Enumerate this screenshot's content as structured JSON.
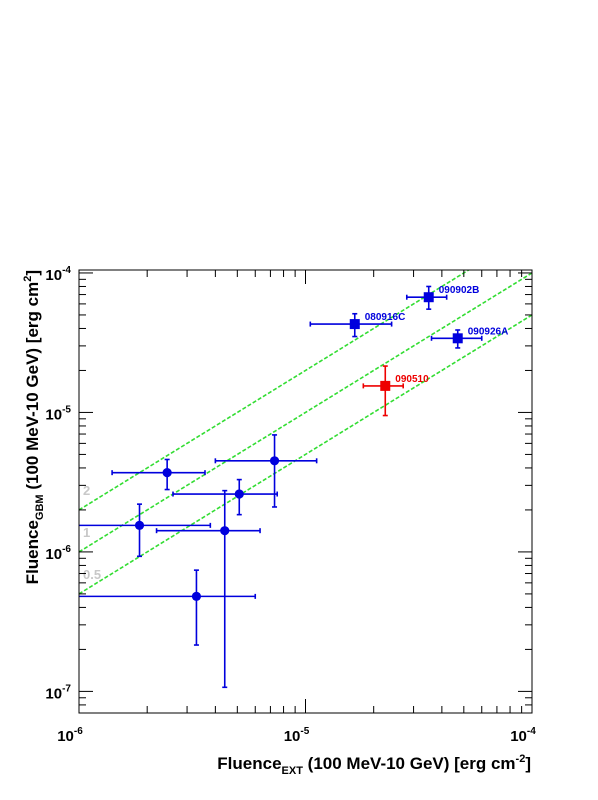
{
  "chart_data": {
    "type": "scatter",
    "title": "",
    "xlabel": {
      "main": "Fluence",
      "sub": "EXT",
      "rest": " (100 MeV-10 GeV) [erg cm",
      "sup": "-2",
      "close": "]"
    },
    "ylabel": {
      "main": "Fluence",
      "sub": "GBM",
      "rest": " (100 MeV-10 GeV) [erg cm",
      "sup": "2",
      "close": "]"
    },
    "xscale": "log",
    "yscale": "log",
    "xlim": [
      1e-06,
      0.0001
    ],
    "ylim": [
      7e-08,
      0.000105
    ],
    "x_ticks": [
      {
        "value": 1e-06,
        "base": "10",
        "exp": "-6"
      },
      {
        "value": 1e-05,
        "base": "10",
        "exp": "-5"
      },
      {
        "value": 0.0001,
        "base": "10",
        "exp": "-4"
      }
    ],
    "y_ticks": [
      {
        "value": 1e-07,
        "base": "10",
        "exp": "-7"
      },
      {
        "value": 1e-06,
        "base": "10",
        "exp": "-6"
      },
      {
        "value": 1e-05,
        "base": "10",
        "exp": "-5"
      },
      {
        "value": 0.0001,
        "base": "10",
        "exp": "-4"
      }
    ],
    "ratio_lines": [
      {
        "ratio": 2,
        "label": "2",
        "color": "#33dd33"
      },
      {
        "ratio": 1,
        "label": "1",
        "color": "#33dd33"
      },
      {
        "ratio": 0.5,
        "label": "0.5",
        "color": "#33dd33"
      }
    ],
    "series": [
      {
        "marker": "square",
        "color": "#0000dd",
        "points": [
          {
            "label": "090902B",
            "x": 3.5e-05,
            "xlo": 2.8e-05,
            "xhi": 4.2e-05,
            "y": 6.7e-05,
            "ylo": 5.5e-05,
            "yhi": 8e-05
          },
          {
            "label": "080916C",
            "x": 1.65e-05,
            "xlo": 1.05e-05,
            "xhi": 2.4e-05,
            "y": 4.3e-05,
            "ylo": 3.5e-05,
            "yhi": 5.1e-05
          },
          {
            "label": "090926A",
            "x": 4.7e-05,
            "xlo": 3.6e-05,
            "xhi": 6e-05,
            "y": 3.4e-05,
            "ylo": 2.9e-05,
            "yhi": 3.9e-05
          }
        ]
      },
      {
        "marker": "square",
        "color": "#ee0000",
        "points": [
          {
            "label": "090510",
            "x": 2.25e-05,
            "xlo": 1.8e-05,
            "xhi": 2.7e-05,
            "y": 1.55e-05,
            "ylo": 9.5e-06,
            "yhi": 2.15e-05
          }
        ]
      },
      {
        "marker": "circle",
        "color": "#0000dd",
        "points": [
          {
            "x": 2.45e-06,
            "xlo": 1.4e-06,
            "xhi": 3.6e-06,
            "y": 3.7e-06,
            "ylo": 2.8e-06,
            "yhi": 4.6e-06
          },
          {
            "x": 7.3e-06,
            "xlo": 4e-06,
            "xhi": 1.12e-05,
            "y": 4.5e-06,
            "ylo": 2.1e-06,
            "yhi": 6.9e-06
          },
          {
            "x": 5.1e-06,
            "xlo": 2.6e-06,
            "xhi": 7.5e-06,
            "y": 2.6e-06,
            "ylo": 1.85e-06,
            "yhi": 3.3e-06
          },
          {
            "x": 1.85e-06,
            "xlo": 1e-06,
            "xhi": 3.8e-06,
            "y": 1.55e-06,
            "ylo": 9.3e-07,
            "yhi": 2.2e-06
          },
          {
            "x": 4.4e-06,
            "xlo": 2.2e-06,
            "xhi": 6.3e-06,
            "y": 1.42e-06,
            "ylo": 1.07e-07,
            "yhi": 2.75e-06
          },
          {
            "x": 3.3e-06,
            "xlo": 1e-06,
            "xhi": 6e-06,
            "y": 4.8e-07,
            "ylo": 2.15e-07,
            "yhi": 7.4e-07
          }
        ]
      }
    ]
  }
}
